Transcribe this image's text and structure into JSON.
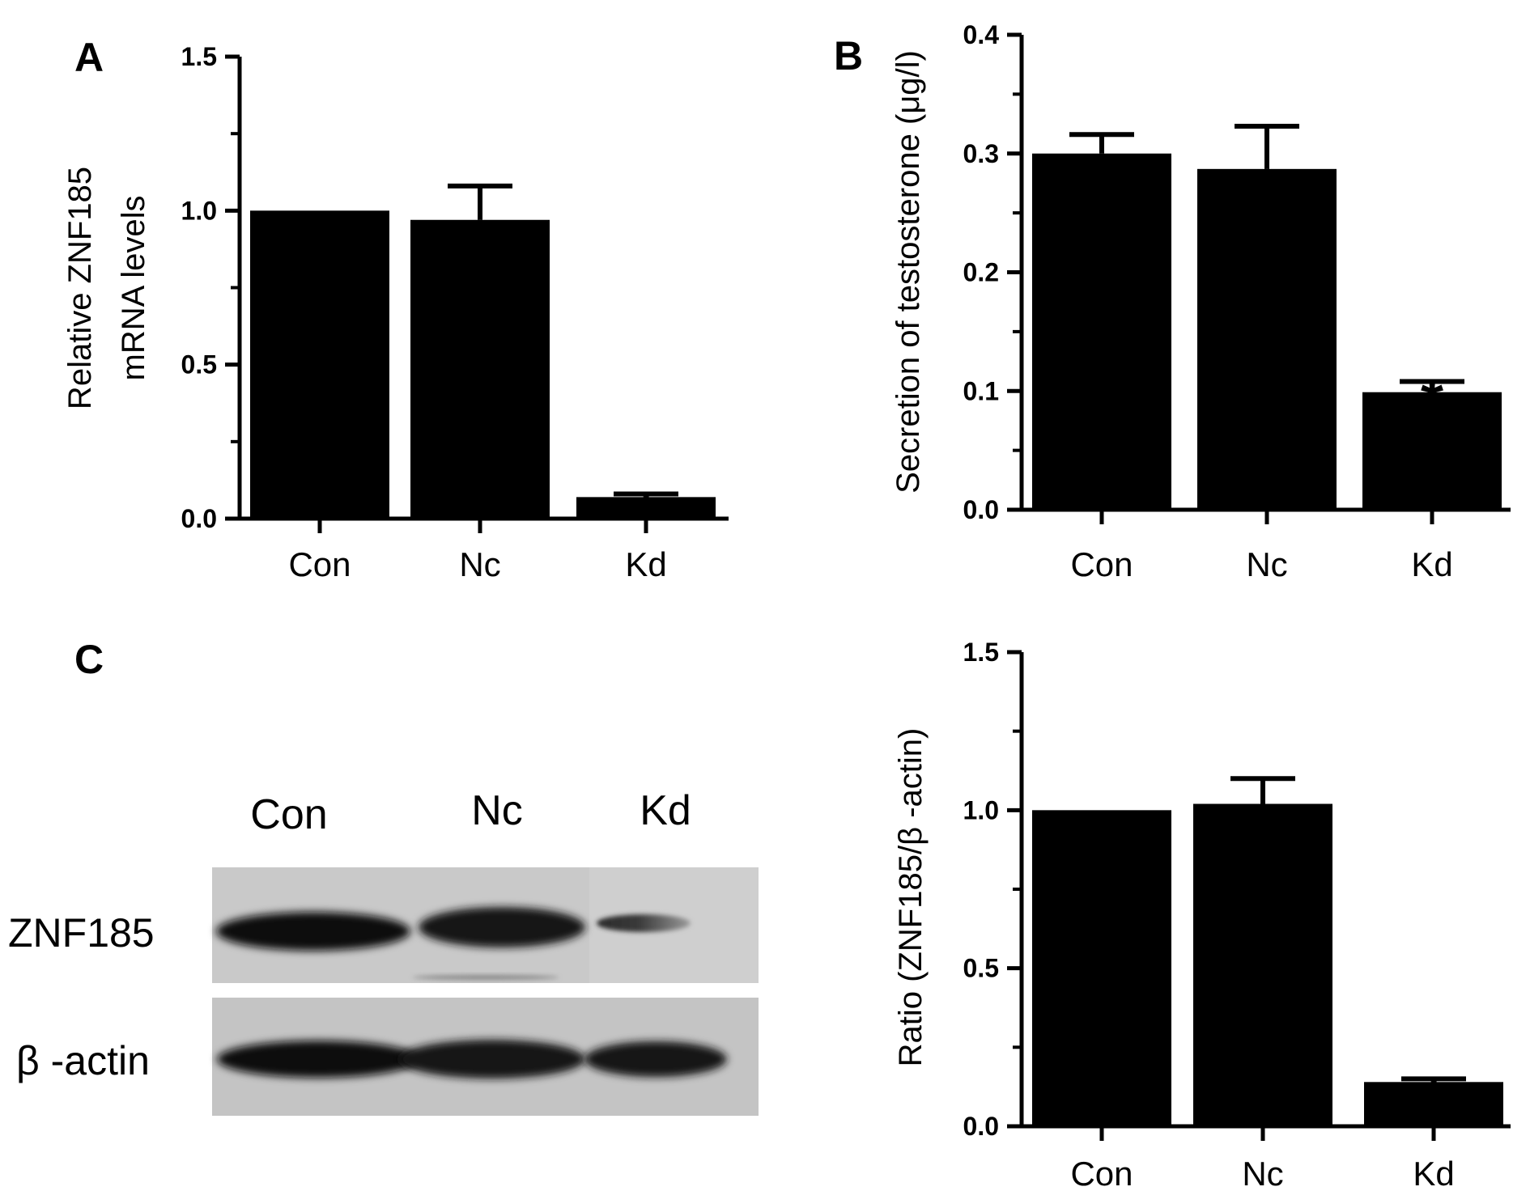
{
  "panels": {
    "a": "A",
    "b": "B",
    "c": "C"
  },
  "blot": {
    "lanes": [
      "Con",
      "Nc",
      "Kd"
    ],
    "rows": [
      "ZNF185",
      "β -actin"
    ]
  },
  "chart_data": [
    {
      "id": "A",
      "type": "bar",
      "categories": [
        "Con",
        "Nc",
        "Kd"
      ],
      "values": [
        1.0,
        0.97,
        0.07
      ],
      "error_upper": [
        0.0,
        0.11,
        0.01
      ],
      "significance": [
        "",
        "",
        "*"
      ],
      "ylabel": [
        "Relative ZNF185",
        "mRNA levels"
      ],
      "ylim": [
        0,
        1.5
      ],
      "yticks": [
        0.0,
        0.5,
        1.0,
        1.5
      ],
      "ytick_labels": [
        "0.0",
        "0.5",
        "1.0",
        "1.5"
      ],
      "grid": false,
      "bar_color": "#000000"
    },
    {
      "id": "B",
      "type": "bar",
      "categories": [
        "Con",
        "Nc",
        "Kd"
      ],
      "values": [
        0.3,
        0.287,
        0.099
      ],
      "error_upper": [
        0.016,
        0.036,
        0.009
      ],
      "significance": [
        "",
        "",
        "*"
      ],
      "ylabel": [
        "Secretion of testosterone (μg/l)"
      ],
      "ylim": [
        0,
        0.4
      ],
      "yticks": [
        0.0,
        0.1,
        0.2,
        0.3,
        0.4
      ],
      "ytick_labels": [
        "0.0",
        "0.1",
        "0.2",
        "0.3",
        "0.4"
      ],
      "grid": false,
      "bar_color": "#000000"
    },
    {
      "id": "C",
      "type": "bar",
      "categories": [
        "Con",
        "Nc",
        "Kd"
      ],
      "values": [
        1.0,
        1.02,
        0.14
      ],
      "error_upper": [
        0.0,
        0.08,
        0.01
      ],
      "significance": [
        "",
        "",
        "*"
      ],
      "ylabel": [
        "Ratio (ZNF185/β -actin)"
      ],
      "ylim": [
        0,
        1.5
      ],
      "yticks": [
        0.0,
        0.5,
        1.0,
        1.5
      ],
      "ytick_labels": [
        "0.0",
        "0.5",
        "1.0",
        "1.5"
      ],
      "grid": false,
      "bar_color": "#000000"
    }
  ]
}
